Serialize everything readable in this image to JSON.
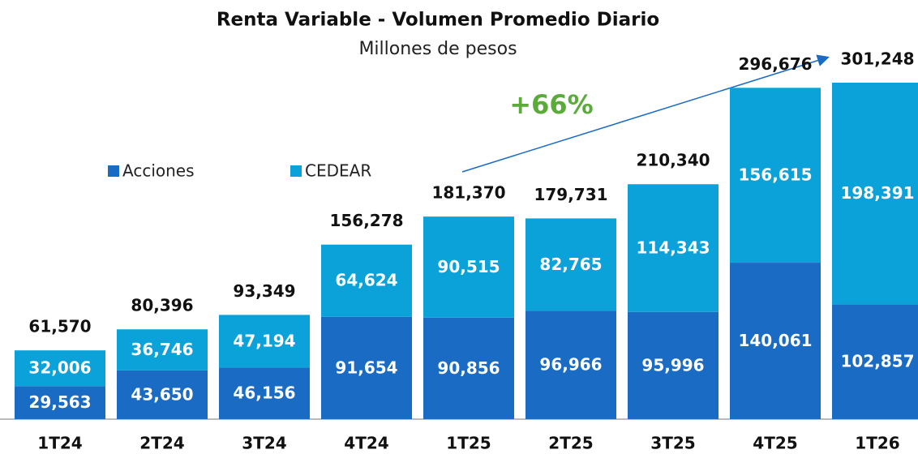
{
  "chart_data": {
    "type": "stacked_bar",
    "title": "Renta Variable - Volumen Promedio Diario",
    "subtitle": "Millones de pesos",
    "annotation": "+66%",
    "categories": [
      "1T24",
      "2T24",
      "3T24",
      "4T24",
      "1T25",
      "2T25",
      "3T25",
      "4T25",
      "1T26"
    ],
    "series": [
      {
        "name": "Acciones",
        "color": "#1a6bc4",
        "values": [
          29563,
          43650,
          46156,
          91654,
          90856,
          96966,
          95996,
          140061,
          102857
        ],
        "value_labels": [
          "29,563",
          "43,650",
          "46,156",
          "91,654",
          "90,856",
          "96,966",
          "95,996",
          "140,061",
          "102,857"
        ]
      },
      {
        "name": "CEDEAR",
        "color": "#0ba2da",
        "values": [
          32006,
          36746,
          47194,
          64624,
          90515,
          82765,
          114343,
          156615,
          198391
        ],
        "value_labels": [
          "32,006",
          "36,746",
          "47,194",
          "64,624",
          "90,515",
          "82,765",
          "114,343",
          "156,615",
          "198,391"
        ]
      }
    ],
    "totals": [
      61570,
      80396,
      93349,
      156278,
      181370,
      179731,
      210340,
      296676,
      301248
    ],
    "total_labels": [
      "61,570",
      "80,396",
      "93,349",
      "156,278",
      "181,370",
      "179,731",
      "210,340",
      "296,676",
      "301,248"
    ]
  }
}
